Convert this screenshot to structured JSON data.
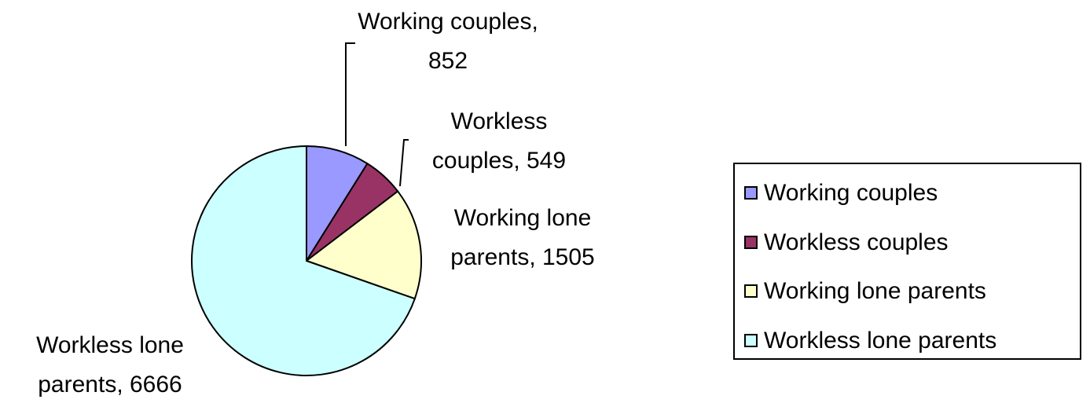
{
  "chart_data": {
    "type": "pie",
    "categories": [
      "Working couples",
      "Workless couples",
      "Working lone parents",
      "Workless lone parents"
    ],
    "values": [
      852,
      549,
      1505,
      6666
    ],
    "value_labels": [
      "Working couples, 852",
      "Workless couples, 549",
      "Working lone parents, 1505",
      "Workless lone parents, 6666"
    ],
    "colors": [
      "#9999ff",
      "#993366",
      "#ffffcc",
      "#ccffff"
    ],
    "legend": "right"
  }
}
